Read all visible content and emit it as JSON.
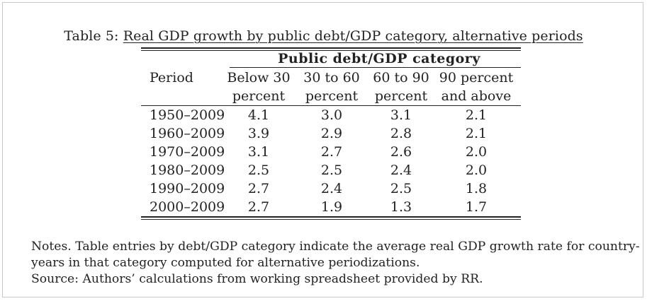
{
  "table": {
    "caption_label": "Table 5:",
    "caption_text": "Real GDP growth by public debt/GDP category, alternative periods",
    "group_header": "Public debt/GDP category",
    "columns": {
      "period": "Period",
      "c1_line1": "Below 30",
      "c1_line2": "percent",
      "c2_line1": "30 to 60",
      "c2_line2": "percent",
      "c3_line1": "60 to 90",
      "c3_line2": "percent",
      "c4_line1": "90 percent",
      "c4_line2": "and above"
    },
    "rows": [
      {
        "period": "1950–2009",
        "v1": "4.1",
        "v2": "3.0",
        "v3": "3.1",
        "v4": "2.1"
      },
      {
        "period": "1960–2009",
        "v1": "3.9",
        "v2": "2.9",
        "v3": "2.8",
        "v4": "2.1"
      },
      {
        "period": "1970–2009",
        "v1": "3.1",
        "v2": "2.7",
        "v3": "2.6",
        "v4": "2.0"
      },
      {
        "period": "1980–2009",
        "v1": "2.5",
        "v2": "2.5",
        "v3": "2.4",
        "v4": "2.0"
      },
      {
        "period": "1990–2009",
        "v1": "2.7",
        "v2": "2.4",
        "v3": "2.5",
        "v4": "1.8"
      },
      {
        "period": "2000–2009",
        "v1": "2.7",
        "v2": "1.9",
        "v3": "1.3",
        "v4": "1.7"
      }
    ]
  },
  "notes": {
    "line1": "Notes. Table entries by debt/GDP category indicate the average real GDP growth rate for country-",
    "line2": "years in that category computed for alternative periodizations.",
    "line3": "Source: Authors’ calculations from working spreadsheet provided by RR."
  }
}
